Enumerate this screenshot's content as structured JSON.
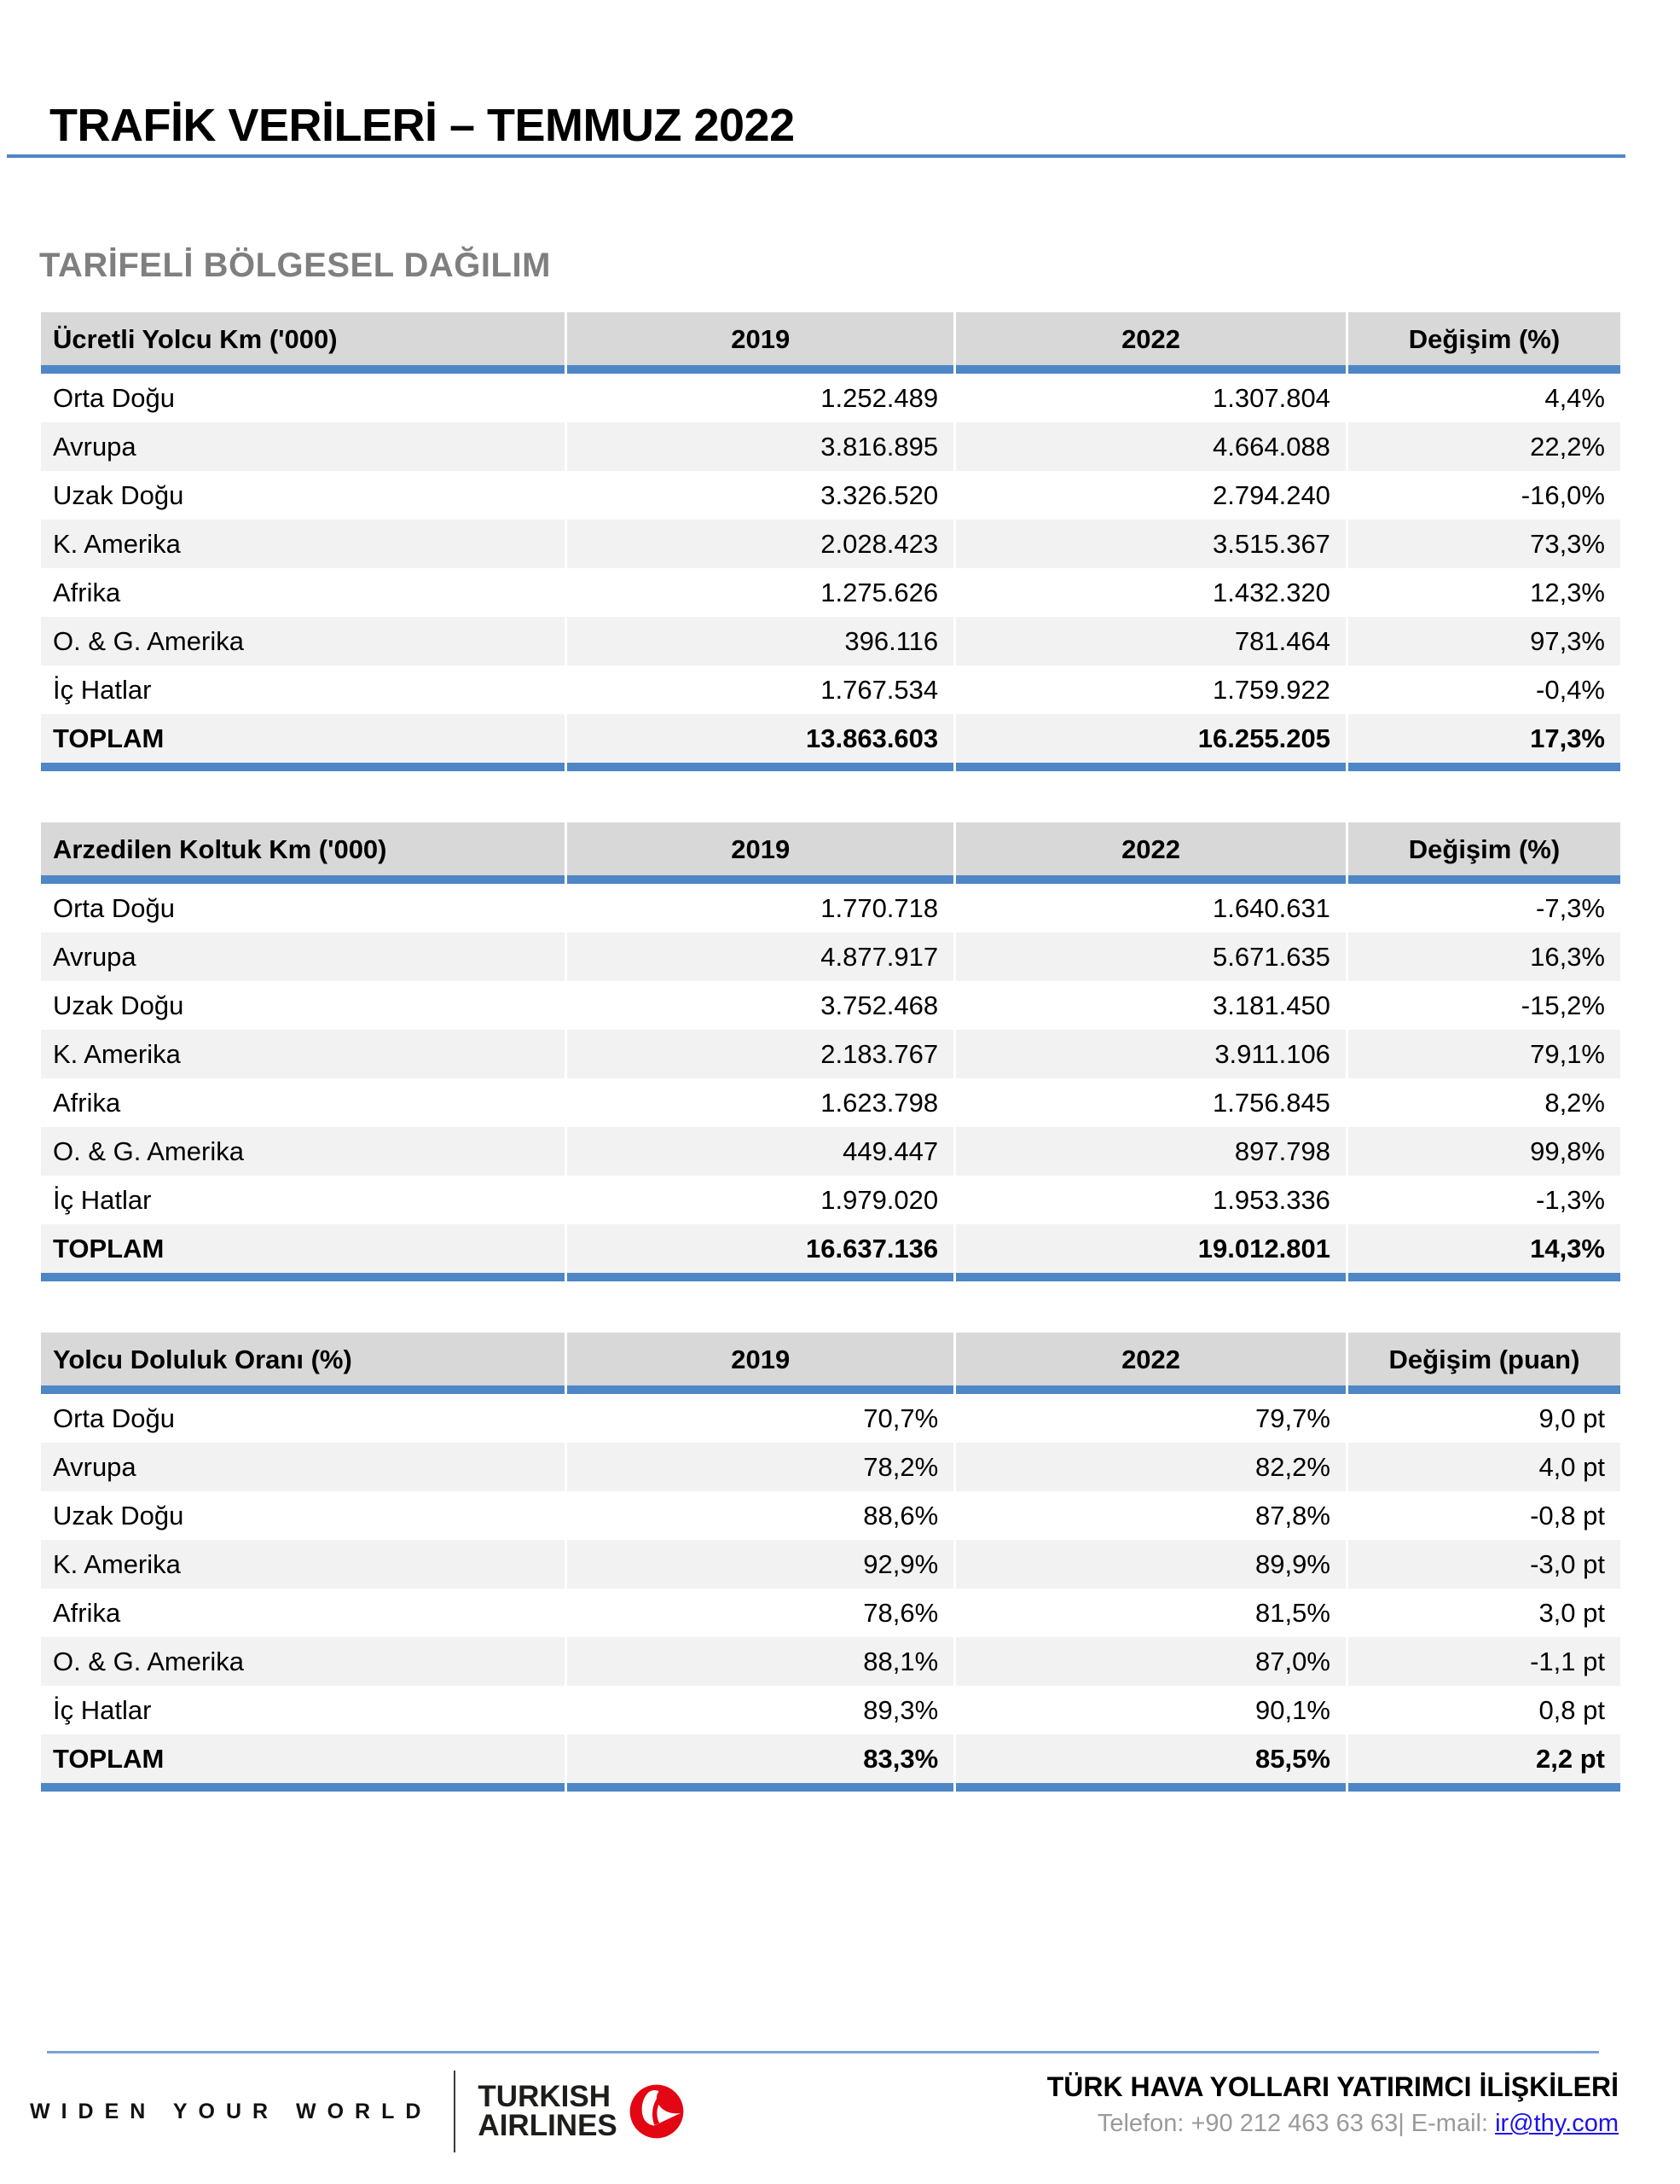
{
  "page": {
    "title": "TRAFİK VERİLERİ – TEMMUZ 2022",
    "section_title": "TARİFELİ BÖLGESEL DAĞILIM"
  },
  "tables": [
    {
      "header": [
        "Ücretli Yolcu Km ('000)",
        "2019",
        "2022",
        "Değişim (%)"
      ],
      "rows": [
        [
          "Orta Doğu",
          "1.252.489",
          "1.307.804",
          "4,4%"
        ],
        [
          "Avrupa",
          "3.816.895",
          "4.664.088",
          "22,2%"
        ],
        [
          "Uzak Doğu",
          "3.326.520",
          "2.794.240",
          "-16,0%"
        ],
        [
          "K. Amerika",
          "2.028.423",
          "3.515.367",
          "73,3%"
        ],
        [
          "Afrika",
          "1.275.626",
          "1.432.320",
          "12,3%"
        ],
        [
          "O. & G. Amerika",
          "396.116",
          "781.464",
          "97,3%"
        ],
        [
          "İç Hatlar",
          "1.767.534",
          "1.759.922",
          "-0,4%"
        ]
      ],
      "total": [
        "TOPLAM",
        "13.863.603",
        "16.255.205",
        "17,3%"
      ]
    },
    {
      "header": [
        "Arzedilen Koltuk Km ('000)",
        "2019",
        "2022",
        "Değişim (%)"
      ],
      "rows": [
        [
          "Orta Doğu",
          "1.770.718",
          "1.640.631",
          "-7,3%"
        ],
        [
          "Avrupa",
          "4.877.917",
          "5.671.635",
          "16,3%"
        ],
        [
          "Uzak Doğu",
          "3.752.468",
          "3.181.450",
          "-15,2%"
        ],
        [
          "K. Amerika",
          "2.183.767",
          "3.911.106",
          "79,1%"
        ],
        [
          "Afrika",
          "1.623.798",
          "1.756.845",
          "8,2%"
        ],
        [
          "O. & G. Amerika",
          "449.447",
          "897.798",
          "99,8%"
        ],
        [
          "İç Hatlar",
          "1.979.020",
          "1.953.336",
          "-1,3%"
        ]
      ],
      "total": [
        "TOPLAM",
        "16.637.136",
        "19.012.801",
        "14,3%"
      ]
    },
    {
      "header": [
        "Yolcu Doluluk Oranı (%)",
        "2019",
        "2022",
        "Değişim (puan)"
      ],
      "rows": [
        [
          "Orta Doğu",
          "70,7%",
          "79,7%",
          "9,0 pt"
        ],
        [
          "Avrupa",
          "78,2%",
          "82,2%",
          "4,0 pt"
        ],
        [
          "Uzak Doğu",
          "88,6%",
          "87,8%",
          "-0,8 pt"
        ],
        [
          "K. Amerika",
          "92,9%",
          "89,9%",
          "-3,0 pt"
        ],
        [
          "Afrika",
          "78,6%",
          "81,5%",
          "3,0 pt"
        ],
        [
          "O. & G. Amerika",
          "88,1%",
          "87,0%",
          "-1,1 pt"
        ],
        [
          "İç Hatlar",
          "89,3%",
          "90,1%",
          "0,8 pt"
        ]
      ],
      "total": [
        "TOPLAM",
        "83,3%",
        "85,5%",
        "2,2 pt"
      ]
    }
  ],
  "footer": {
    "tagline": "WIDEN YOUR WORLD",
    "brand_line1": "TURKISH",
    "brand_line2": "AIRLINES",
    "contact_title": "TÜRK HAVA YOLLARI YATIRIMCI İLİŞKİLERİ",
    "contact_prefix": "Telefon: +90 212 463 63 63| E-mail: ",
    "contact_email": "ir@thy.com"
  },
  "colors": {
    "accent_blue": "#4f86c6",
    "header_gray": "#d8d8d8",
    "stripe_gray": "#f2f2f2",
    "subtitle_gray": "#7f7f7f",
    "muted_gray": "#9a9a9a",
    "brand_red": "#e30613",
    "link_blue": "#1d12e8"
  }
}
